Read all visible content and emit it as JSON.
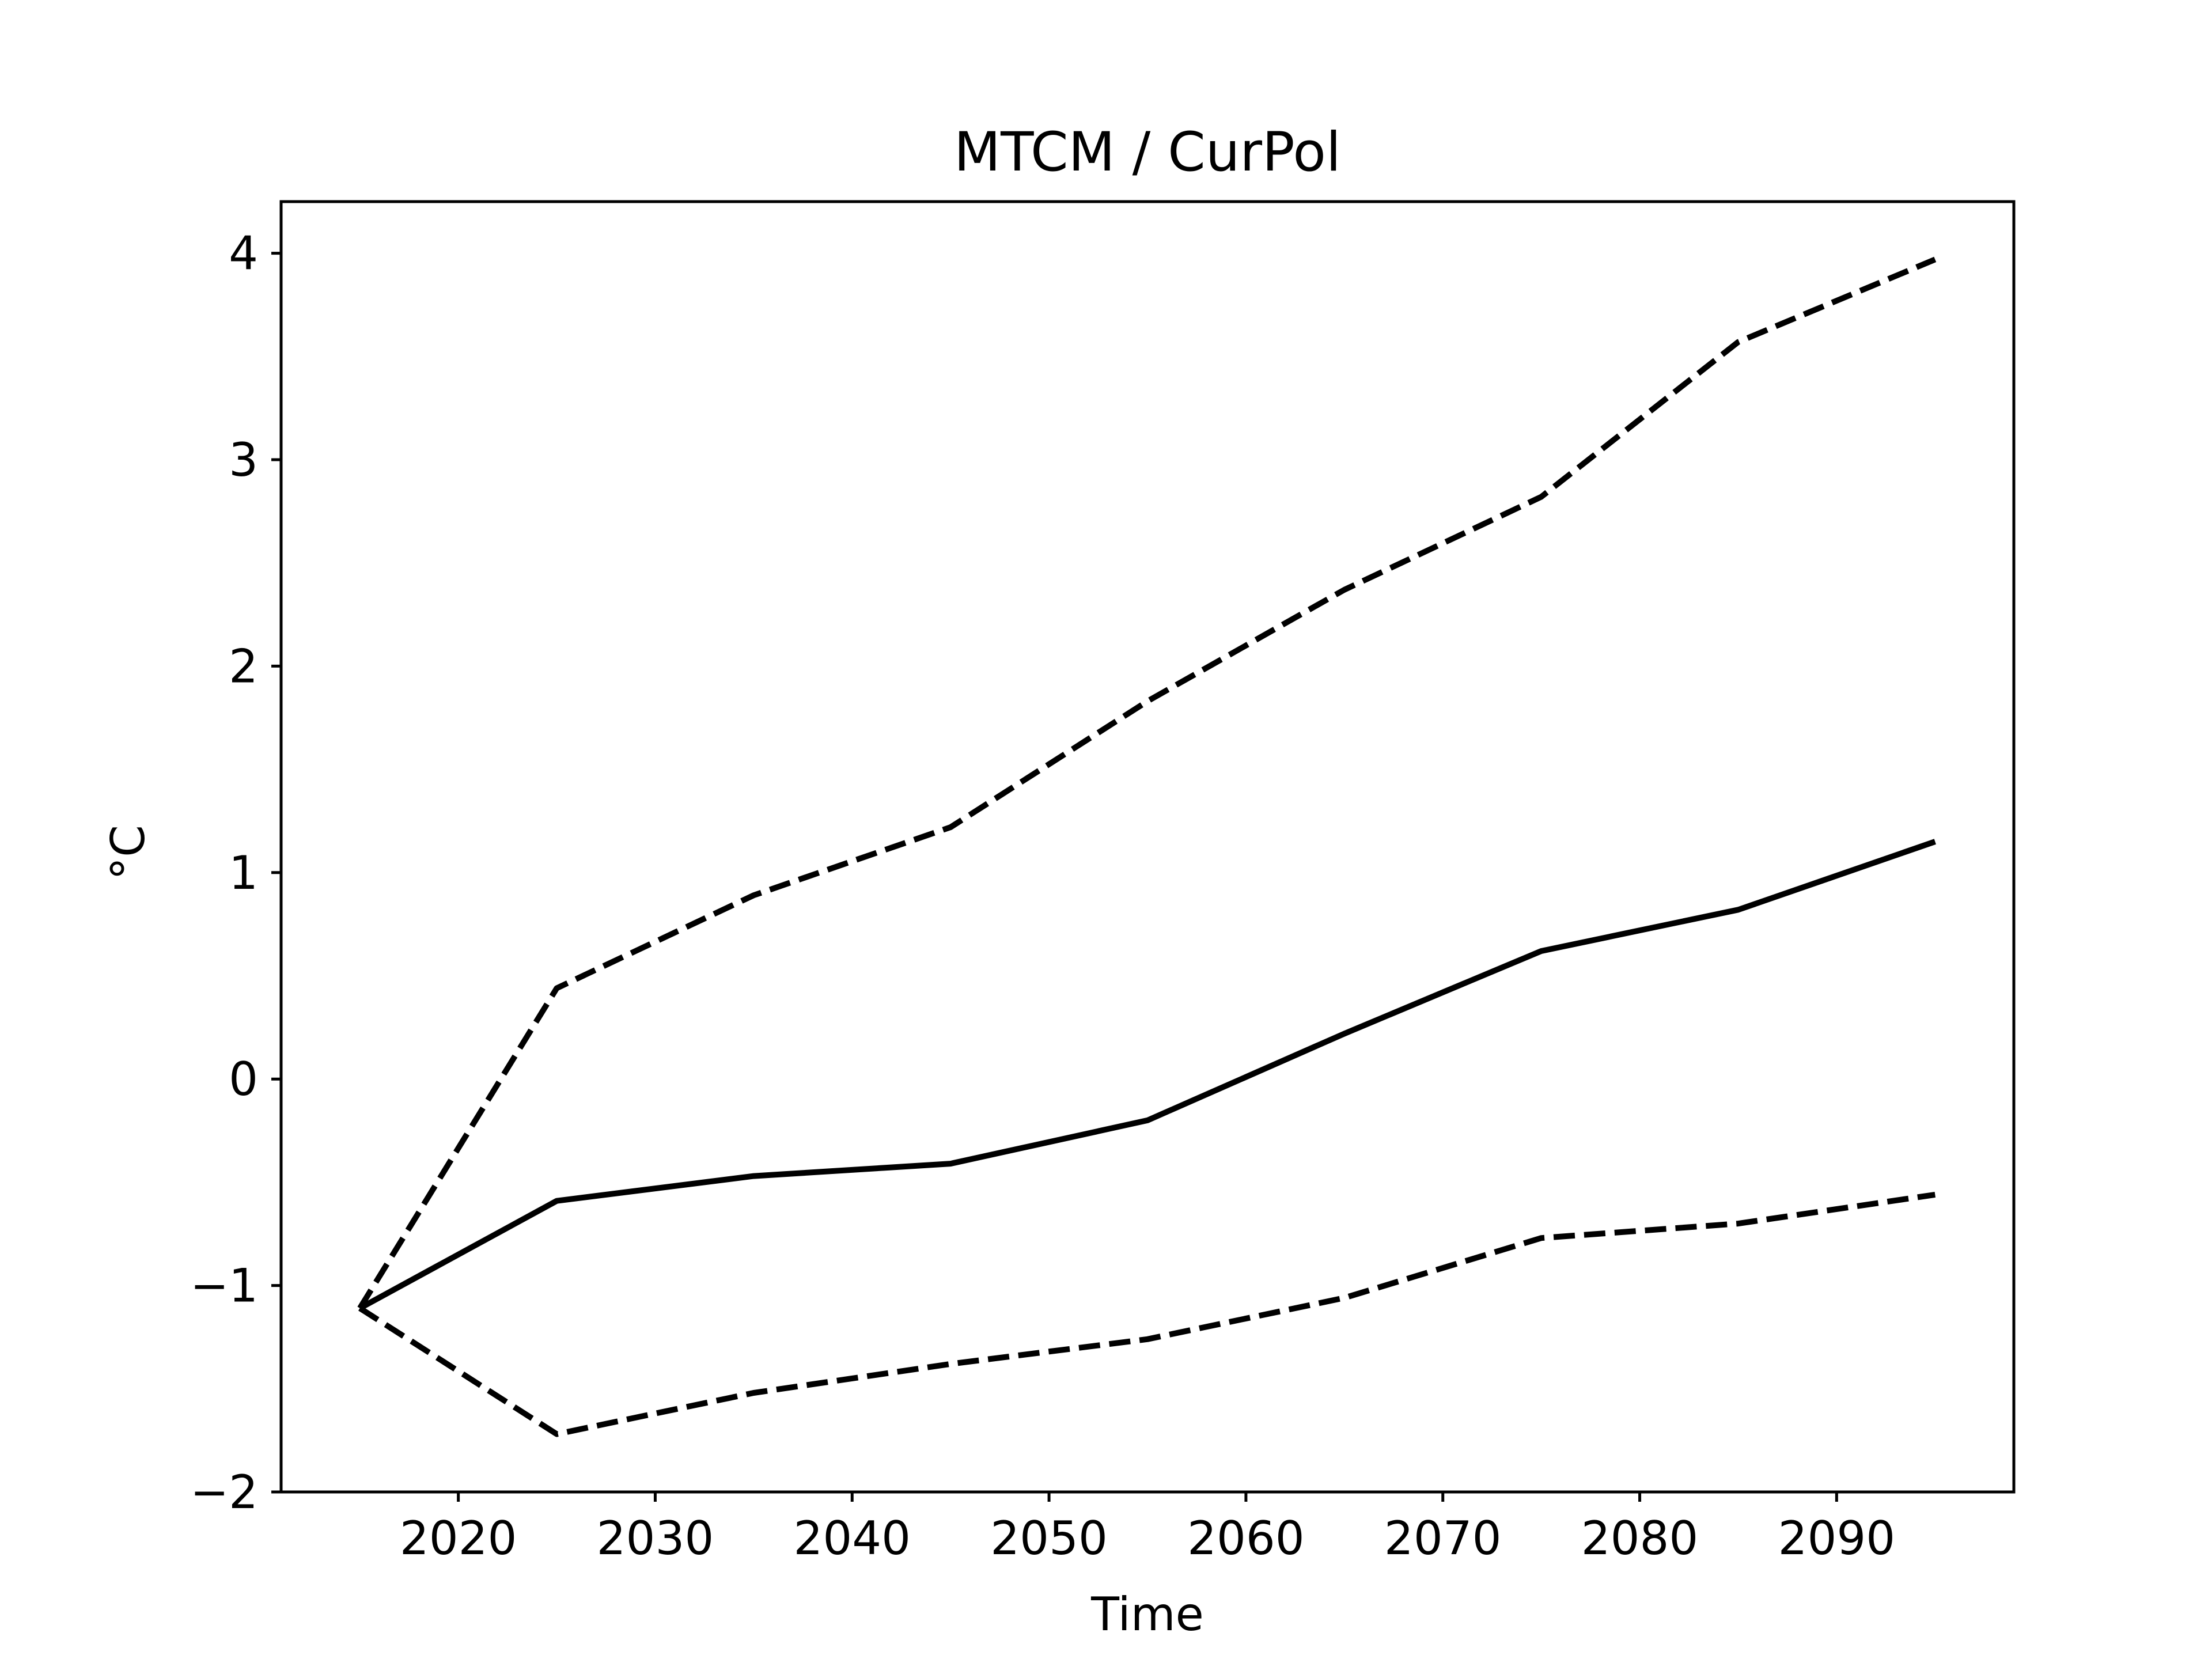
{
  "chart_data": {
    "type": "line",
    "title": "MTCM / CurPol",
    "xlabel": "Time",
    "ylabel": "°C",
    "xlim": [
      2011,
      2099
    ],
    "ylim": [
      -2,
      4.25
    ],
    "xticks": [
      2020,
      2030,
      2040,
      2050,
      2060,
      2070,
      2080,
      2090
    ],
    "yticks": [
      -2,
      -1,
      0,
      1,
      2,
      3,
      4
    ],
    "ytick_labels": [
      "−2",
      "−1",
      "0",
      "1",
      "2",
      "3",
      "4"
    ],
    "grid": false,
    "x": [
      2015,
      2025,
      2035,
      2045,
      2055,
      2065,
      2075,
      2085,
      2095
    ],
    "series": [
      {
        "style": "solid",
        "color": "#000000",
        "values": [
          -1.11,
          -0.59,
          -0.47,
          -0.41,
          -0.2,
          0.22,
          0.62,
          0.82,
          1.15
        ]
      },
      {
        "style": "dashed",
        "color": "#000000",
        "values": [
          -1.11,
          0.44,
          0.89,
          1.22,
          1.83,
          2.37,
          2.82,
          3.57,
          3.97
        ]
      },
      {
        "style": "dashed",
        "color": "#000000",
        "values": [
          -1.11,
          -1.72,
          -1.52,
          -1.38,
          -1.26,
          -1.06,
          -0.77,
          -0.7,
          -0.56
        ]
      }
    ]
  }
}
